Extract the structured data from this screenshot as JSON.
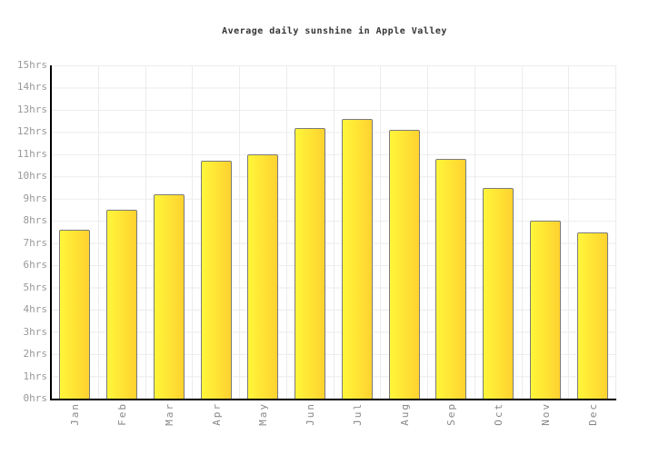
{
  "title": "Average daily sunshine in Apple Valley",
  "colors": {
    "bar_gradient_left": "#fff63a",
    "bar_gradient_right": "#ffd230",
    "bar_border": "#7b7b7b",
    "grid_line": "#ececec",
    "axis_line": "#000000",
    "title_text": "#333333",
    "ytick_text": "#999999",
    "xtick_text": "#888888",
    "background": "#ffffff"
  },
  "chart_data": {
    "type": "bar",
    "title": "Average daily sunshine in Apple Valley",
    "categories": [
      "Jan",
      "Feb",
      "Mar",
      "Apr",
      "May",
      "Jun",
      "Jul",
      "Aug",
      "Sep",
      "Oct",
      "Nov",
      "Dec"
    ],
    "values": [
      7.6,
      8.5,
      9.2,
      10.7,
      11.0,
      12.2,
      12.6,
      12.1,
      10.8,
      9.5,
      8.0,
      7.5
    ],
    "unit": "hrs",
    "xlabel": "",
    "ylabel": "",
    "ylim": [
      0,
      15
    ],
    "ytick_step": 1,
    "yticks": [
      "15hrs",
      "14hrs",
      "13hrs",
      "12hrs",
      "11hrs",
      "10hrs",
      "9hrs",
      "8hrs",
      "7hrs",
      "6hrs",
      "5hrs",
      "4hrs",
      "3hrs",
      "2hrs",
      "1hrs",
      "0hrs"
    ],
    "grid": true,
    "legend_position": "none",
    "bar_orientation": "vertical",
    "x_label_rotation": -90
  }
}
